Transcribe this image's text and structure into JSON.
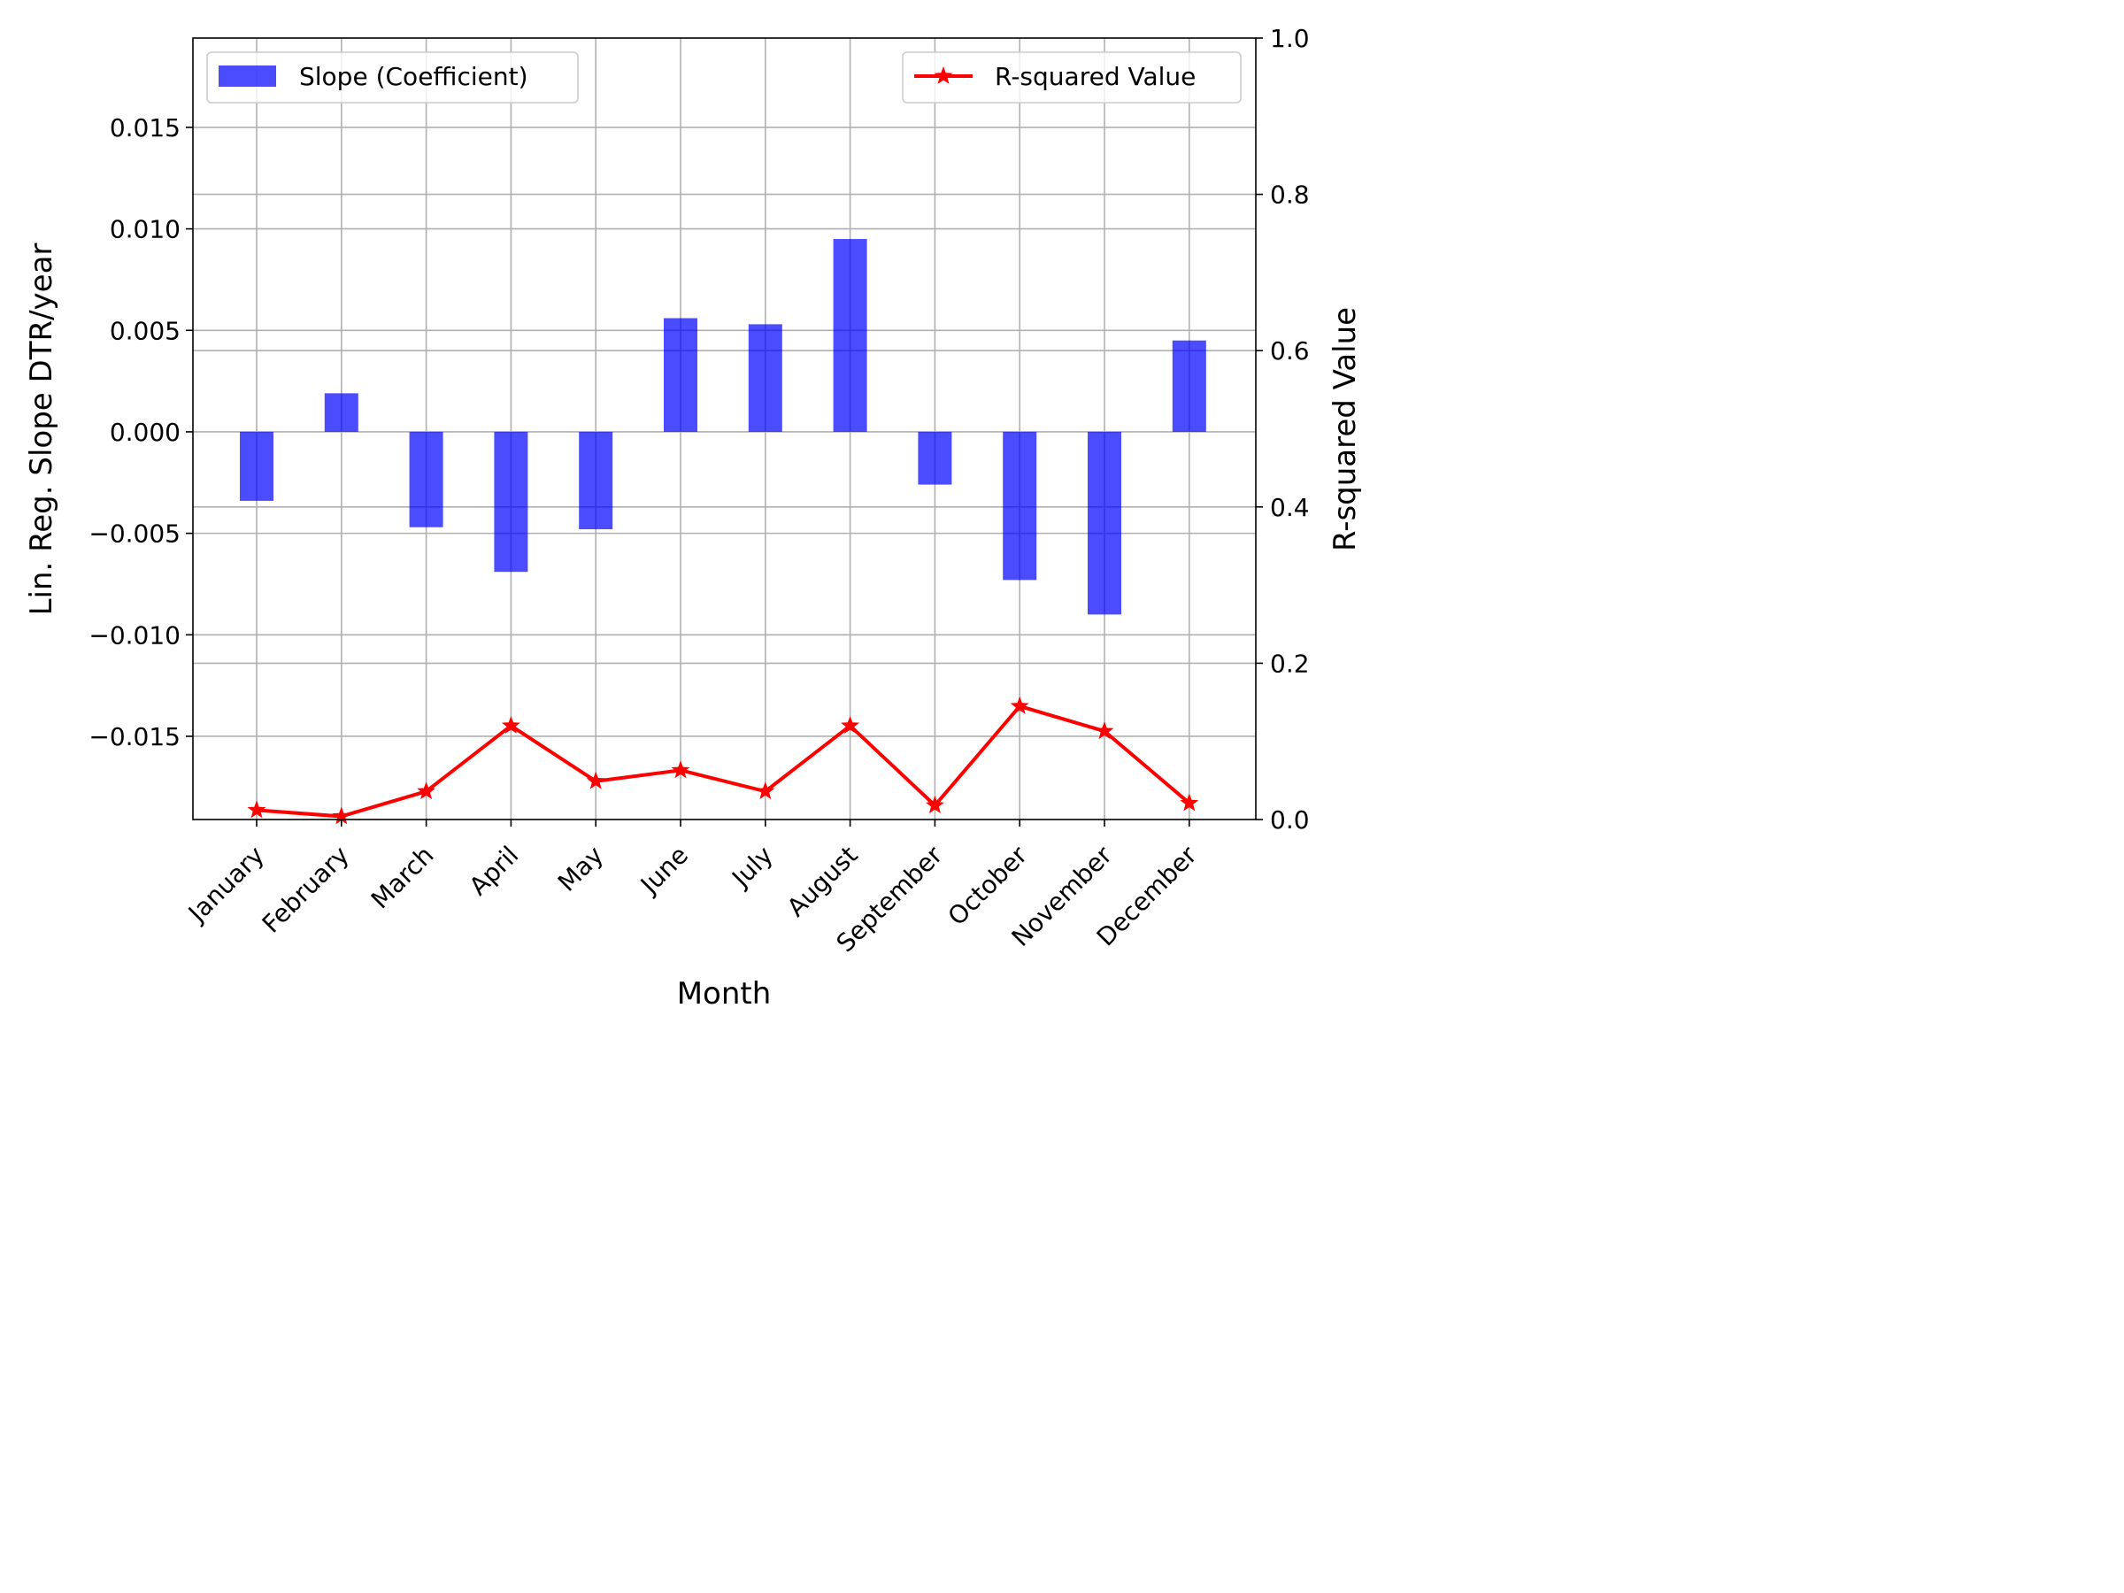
{
  "chart_data": {
    "type": "bar",
    "title": "",
    "xlabel": "Month",
    "ylabel": "Lin. Reg. Slope DTR/year",
    "y2label": "R-squared Value",
    "categories": [
      "January",
      "February",
      "March",
      "April",
      "May",
      "June",
      "July",
      "August",
      "September",
      "October",
      "November",
      "December"
    ],
    "ylim": [
      -0.0191,
      0.0194
    ],
    "y2lim": [
      0.0,
      1.0
    ],
    "yticks": [
      "0.015",
      "0.010",
      "0.005",
      "0.000",
      "−0.005",
      "−0.010",
      "−0.015"
    ],
    "ytick_values": [
      0.015,
      0.01,
      0.005,
      0.0,
      -0.005,
      -0.01,
      -0.015
    ],
    "y2ticks": [
      "1.0",
      "0.8",
      "0.6",
      "0.4",
      "0.2",
      "0.0"
    ],
    "y2tick_values": [
      1.0,
      0.8,
      0.6,
      0.4,
      0.2,
      0.0
    ],
    "grid": true,
    "series": [
      {
        "name": "Slope (Coefficient)",
        "kind": "bar",
        "axis": "left",
        "color": "#0000ff",
        "opacity": 0.7,
        "values": [
          -0.0034,
          0.0019,
          -0.0047,
          -0.0069,
          -0.0048,
          0.0056,
          0.0053,
          0.0095,
          -0.0026,
          -0.0073,
          -0.009,
          0.0045
        ]
      },
      {
        "name": "R-squared Value",
        "kind": "line",
        "axis": "right",
        "color": "#ff0000",
        "marker": "star",
        "values": [
          0.012,
          0.004,
          0.036,
          0.12,
          0.049,
          0.063,
          0.036,
          0.12,
          0.018,
          0.145,
          0.113,
          0.021
        ]
      }
    ],
    "legend_left_position": "upper-left",
    "legend_right_position": "upper-right"
  }
}
